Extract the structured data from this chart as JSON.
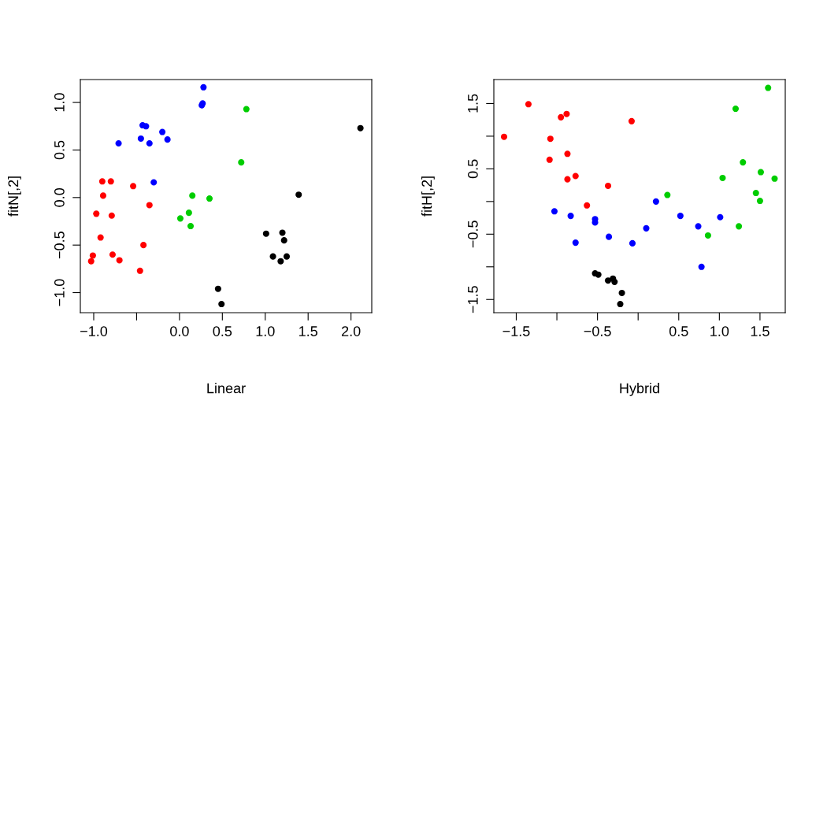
{
  "chart_data": [
    {
      "type": "scatter",
      "xlabel": "Linear",
      "ylabel": "fitN[,2]",
      "marker": "circle",
      "grid": false,
      "legend": false,
      "xlim": [
        -1.156,
        2.242
      ],
      "ylim": [
        -1.211,
        1.241
      ],
      "xticks": [
        {
          "value": -1.0,
          "label": "−1.0"
        },
        {
          "value": -0.5,
          "label": null
        },
        {
          "value": 0.0,
          "label": "0.0"
        },
        {
          "value": 0.5,
          "label": "0.5"
        },
        {
          "value": 1.0,
          "label": "1.0"
        },
        {
          "value": 1.5,
          "label": "1.5"
        },
        {
          "value": 2.0,
          "label": "2.0"
        }
      ],
      "yticks": [
        {
          "value": -1.0,
          "label": "−1.0"
        },
        {
          "value": -0.5,
          "label": "−0.5"
        },
        {
          "value": 0.0,
          "label": "0.0"
        },
        {
          "value": 0.5,
          "label": "0.5"
        },
        {
          "value": 1.0,
          "label": "1.0"
        }
      ],
      "series": [
        {
          "color": "#0000ff",
          "x": [
            0.28,
            0.27,
            0.26,
            -0.43,
            -0.39,
            -0.2,
            -0.45,
            -0.14,
            -0.71,
            -0.35,
            -0.3
          ],
          "values": [
            1.16,
            0.99,
            0.97,
            0.76,
            0.75,
            0.69,
            0.62,
            0.61,
            0.57,
            0.57,
            0.16
          ]
        },
        {
          "color": "#00cd00",
          "x": [
            0.78,
            0.72,
            0.15,
            0.35,
            0.11,
            0.01,
            0.13
          ],
          "values": [
            0.93,
            0.37,
            0.02,
            -0.01,
            -0.16,
            -0.22,
            -0.3
          ]
        },
        {
          "color": "#ff0000",
          "x": [
            -0.9,
            -0.8,
            -0.54,
            -0.89,
            -0.35,
            -0.97,
            -0.79,
            -0.92,
            -0.42,
            -1.01,
            -0.78,
            -1.03,
            -0.7,
            -0.46
          ],
          "values": [
            0.17,
            0.17,
            0.12,
            0.02,
            -0.08,
            -0.17,
            -0.19,
            -0.42,
            -0.5,
            -0.61,
            -0.6,
            -0.67,
            -0.66,
            -0.77
          ]
        },
        {
          "color": "#000000",
          "x": [
            2.11,
            1.39,
            1.01,
            1.2,
            1.22,
            1.09,
            1.25,
            1.18,
            0.45,
            0.49
          ],
          "values": [
            0.73,
            0.03,
            -0.38,
            -0.37,
            -0.45,
            -0.62,
            -0.62,
            -0.67,
            -0.96,
            -1.12
          ]
        }
      ]
    },
    {
      "type": "scatter",
      "xlabel": "Hybrid",
      "ylabel": "fitH[,2]",
      "marker": "circle",
      "grid": false,
      "legend": false,
      "xlim": [
        -1.776,
        1.811
      ],
      "ylim": [
        -1.702,
        1.867
      ],
      "xticks": [
        {
          "value": -1.5,
          "label": "−1.5"
        },
        {
          "value": -1.0,
          "label": null
        },
        {
          "value": -0.5,
          "label": "−0.5"
        },
        {
          "value": 0.0,
          "label": null
        },
        {
          "value": 0.5,
          "label": "0.5"
        },
        {
          "value": 1.0,
          "label": "1.0"
        },
        {
          "value": 1.5,
          "label": "1.5"
        }
      ],
      "yticks": [
        {
          "value": -1.5,
          "label": "−1.5"
        },
        {
          "value": -1.0,
          "label": null
        },
        {
          "value": -0.5,
          "label": "−0.5"
        },
        {
          "value": 0.0,
          "label": null
        },
        {
          "value": 0.5,
          "label": "0.5"
        },
        {
          "value": 1.0,
          "label": null
        },
        {
          "value": 1.5,
          "label": "1.5"
        }
      ],
      "series": [
        {
          "color": "#ff0000",
          "x": [
            -1.65,
            -1.35,
            -0.95,
            -0.88,
            -0.08,
            -1.08,
            -0.87,
            -1.09,
            -0.87,
            -0.77,
            -0.37,
            -0.63
          ],
          "values": [
            0.99,
            1.49,
            1.29,
            1.34,
            1.23,
            0.96,
            0.73,
            0.64,
            0.34,
            0.39,
            0.24,
            -0.06
          ]
        },
        {
          "color": "#0000ff",
          "x": [
            -1.03,
            -0.83,
            -0.53,
            -0.53,
            -0.77,
            -0.36,
            -0.07,
            0.1,
            0.22,
            0.52,
            0.74,
            1.01,
            0.78
          ],
          "values": [
            -0.15,
            -0.22,
            -0.27,
            -0.32,
            -0.63,
            -0.54,
            -0.64,
            -0.41,
            0.0,
            -0.22,
            -0.38,
            -0.24,
            -1.0
          ]
        },
        {
          "color": "#00cd00",
          "x": [
            0.36,
            0.86,
            1.04,
            1.2,
            1.24,
            1.29,
            1.51,
            1.45,
            1.5,
            1.68,
            1.6
          ],
          "values": [
            0.1,
            -0.52,
            0.36,
            1.42,
            -0.38,
            0.6,
            0.45,
            0.13,
            0.01,
            0.35,
            1.74
          ]
        },
        {
          "color": "#000000",
          "x": [
            -0.53,
            -0.49,
            -0.37,
            -0.31,
            -0.29,
            -0.2,
            -0.22
          ],
          "values": [
            -1.1,
            -1.12,
            -1.21,
            -1.18,
            -1.23,
            -1.4,
            -1.57
          ]
        }
      ]
    }
  ]
}
